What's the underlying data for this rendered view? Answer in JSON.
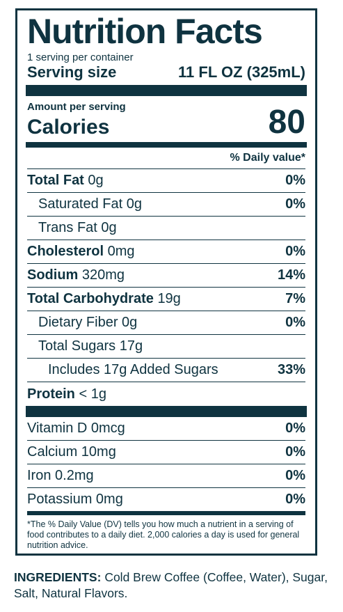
{
  "label": {
    "title": "Nutrition Facts",
    "servings_per_container": "1 serving per container",
    "serving_size_label": "Serving size",
    "serving_size_value": "11 FL OZ (325mL)",
    "amount_per_serving": "Amount per serving",
    "calories_label": "Calories",
    "calories_value": "80",
    "daily_value_header": "% Daily value*",
    "nutrients": [
      {
        "name": "Total Fat",
        "amount": "0g",
        "dv": "0%"
      },
      {
        "name": "Saturated Fat",
        "amount": "0g",
        "dv": "0%"
      },
      {
        "name": "Trans Fat",
        "amount": "0g",
        "dv": ""
      },
      {
        "name": "Cholesterol",
        "amount": "0mg",
        "dv": "0%"
      },
      {
        "name": "Sodium",
        "amount": "320mg",
        "dv": "14%"
      },
      {
        "name": "Total Carbohydrate",
        "amount": "19g",
        "dv": "7%"
      },
      {
        "name": "Dietary Fiber",
        "amount": "0g",
        "dv": "0%"
      },
      {
        "name": "Total Sugars",
        "amount": "17g",
        "dv": ""
      },
      {
        "name": "Includes 17g Added Sugars",
        "amount": "",
        "dv": "33%"
      },
      {
        "name": "Protein",
        "amount": "< 1g",
        "dv": ""
      }
    ],
    "vitamins": [
      {
        "name": "Vitamin D 0mcg",
        "dv": "0%"
      },
      {
        "name": "Calcium 10mg",
        "dv": "0%"
      },
      {
        "name": "Iron 0.2mg",
        "dv": "0%"
      },
      {
        "name": "Potassium 0mg",
        "dv": "0%"
      }
    ],
    "footnote": "*The % Daily Value (DV) tells you how much a nutrient in a serving of food contributes to a daily diet. 2,000 calories a day is used for general nutrition advice."
  },
  "ingredients": {
    "heading": "INGREDIENTS:",
    "text": "Cold Brew Coffee (Coffee, Water), Sugar, Salt, Natural Flavors."
  }
}
